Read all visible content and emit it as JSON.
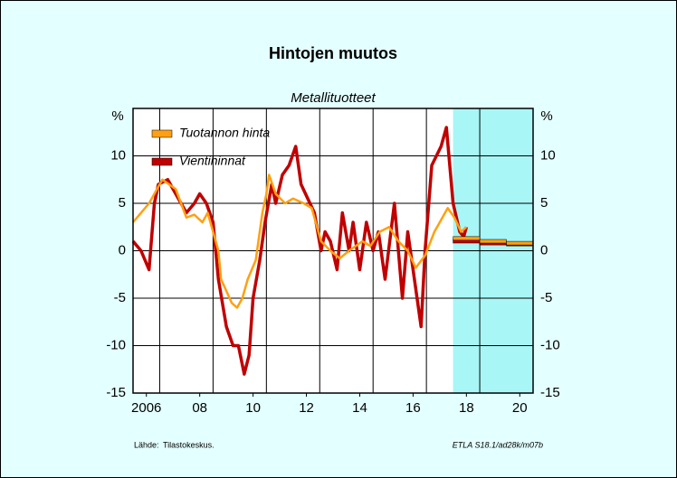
{
  "chart_data": {
    "type": "line",
    "title": "Hintojen muutos",
    "subtitle": "Metallituotteet",
    "ylabel": "%",
    "source_label": "Lähde:",
    "source": "Tilastokeskus.",
    "code": "ETLA S18.1/ad28k/m07b",
    "xlim": [
      2006,
      2021
    ],
    "ylim": [
      -15,
      15
    ],
    "xticks": [
      {
        "value": 2006.5,
        "label": "2006"
      },
      {
        "value": 2008.5,
        "label": "08"
      },
      {
        "value": 2010.5,
        "label": "10"
      },
      {
        "value": 2012.5,
        "label": "12"
      },
      {
        "value": 2014.5,
        "label": "14"
      },
      {
        "value": 2016.5,
        "label": "16"
      },
      {
        "value": 2018.5,
        "label": "18"
      },
      {
        "value": 2020.5,
        "label": "20"
      }
    ],
    "xgrid": [
      2007,
      2009,
      2011,
      2013,
      2015,
      2017,
      2019
    ],
    "yticks": [
      -15,
      -10,
      -5,
      0,
      5,
      10
    ],
    "grid": true,
    "forecast_x": [
      2018,
      2019,
      2020
    ],
    "forecast_color": "#a8f6f6",
    "series": [
      {
        "name": "Tuotannon hinta",
        "color": "#ffa010",
        "x": [
          2006.0,
          2006.6,
          2007.1,
          2007.6,
          2008.0,
          2008.3,
          2008.6,
          2008.8,
          2009.2,
          2009.3,
          2009.7,
          2009.9,
          2010.1,
          2010.3,
          2010.6,
          2010.85,
          2011.0,
          2011.1,
          2011.35,
          2011.7,
          2012.0,
          2012.4,
          2012.7,
          2013.05,
          2013.4,
          2013.75,
          2014.1,
          2014.6,
          2014.9,
          2015.25,
          2015.6,
          2015.95,
          2016.3,
          2016.6,
          2016.95,
          2017.3,
          2017.8,
          2018.05,
          2018.3,
          2018.5
        ],
        "values": [
          3,
          5,
          7.5,
          6.5,
          3.5,
          3.8,
          3,
          4,
          0,
          -3,
          -5.5,
          -6,
          -5,
          -3,
          -1,
          4,
          6,
          8,
          6,
          5,
          5.5,
          5,
          4.5,
          1,
          0,
          -0.8,
          0,
          1,
          0.5,
          2,
          2.5,
          1,
          0,
          -1.8,
          -0.5,
          2,
          4.5,
          3.5,
          2,
          2.5
        ],
        "forecast": [
          1.3,
          1.0,
          0.8
        ]
      },
      {
        "name": "Vientihinnat",
        "color": "#c00000",
        "x": [
          2006.0,
          2006.3,
          2006.6,
          2006.8,
          2006.95,
          2007.3,
          2007.6,
          2008.0,
          2008.3,
          2008.5,
          2008.75,
          2009.0,
          2009.2,
          2009.5,
          2009.75,
          2009.95,
          2010.17,
          2010.35,
          2010.5,
          2010.75,
          2010.95,
          2011.2,
          2011.35,
          2011.6,
          2011.85,
          2012.1,
          2012.3,
          2012.55,
          2012.8,
          2013.05,
          2013.2,
          2013.4,
          2013.65,
          2013.85,
          2014.1,
          2014.25,
          2014.5,
          2014.75,
          2015.0,
          2015.2,
          2015.45,
          2015.8,
          2015.95,
          2016.1,
          2016.3,
          2016.55,
          2016.8,
          2016.95,
          2017.2,
          2017.55,
          2017.75,
          2018.0,
          2018.25,
          2018.4,
          2018.5
        ],
        "values": [
          1,
          0,
          -2,
          5,
          7,
          7.5,
          6,
          4,
          5,
          6,
          5,
          3,
          -3,
          -8,
          -10,
          -10,
          -13,
          -11,
          -5,
          -1,
          3,
          7,
          5,
          8,
          9,
          11,
          7,
          5.5,
          4,
          0,
          2,
          1,
          -2,
          4,
          0,
          3,
          -2,
          3,
          0,
          2,
          -3,
          5,
          0,
          -5,
          2,
          -3,
          -8,
          0,
          9,
          11,
          13,
          5,
          2,
          1.5,
          2.5
        ],
        "forecast": [
          1.0,
          0.8,
          0.7
        ]
      }
    ]
  }
}
